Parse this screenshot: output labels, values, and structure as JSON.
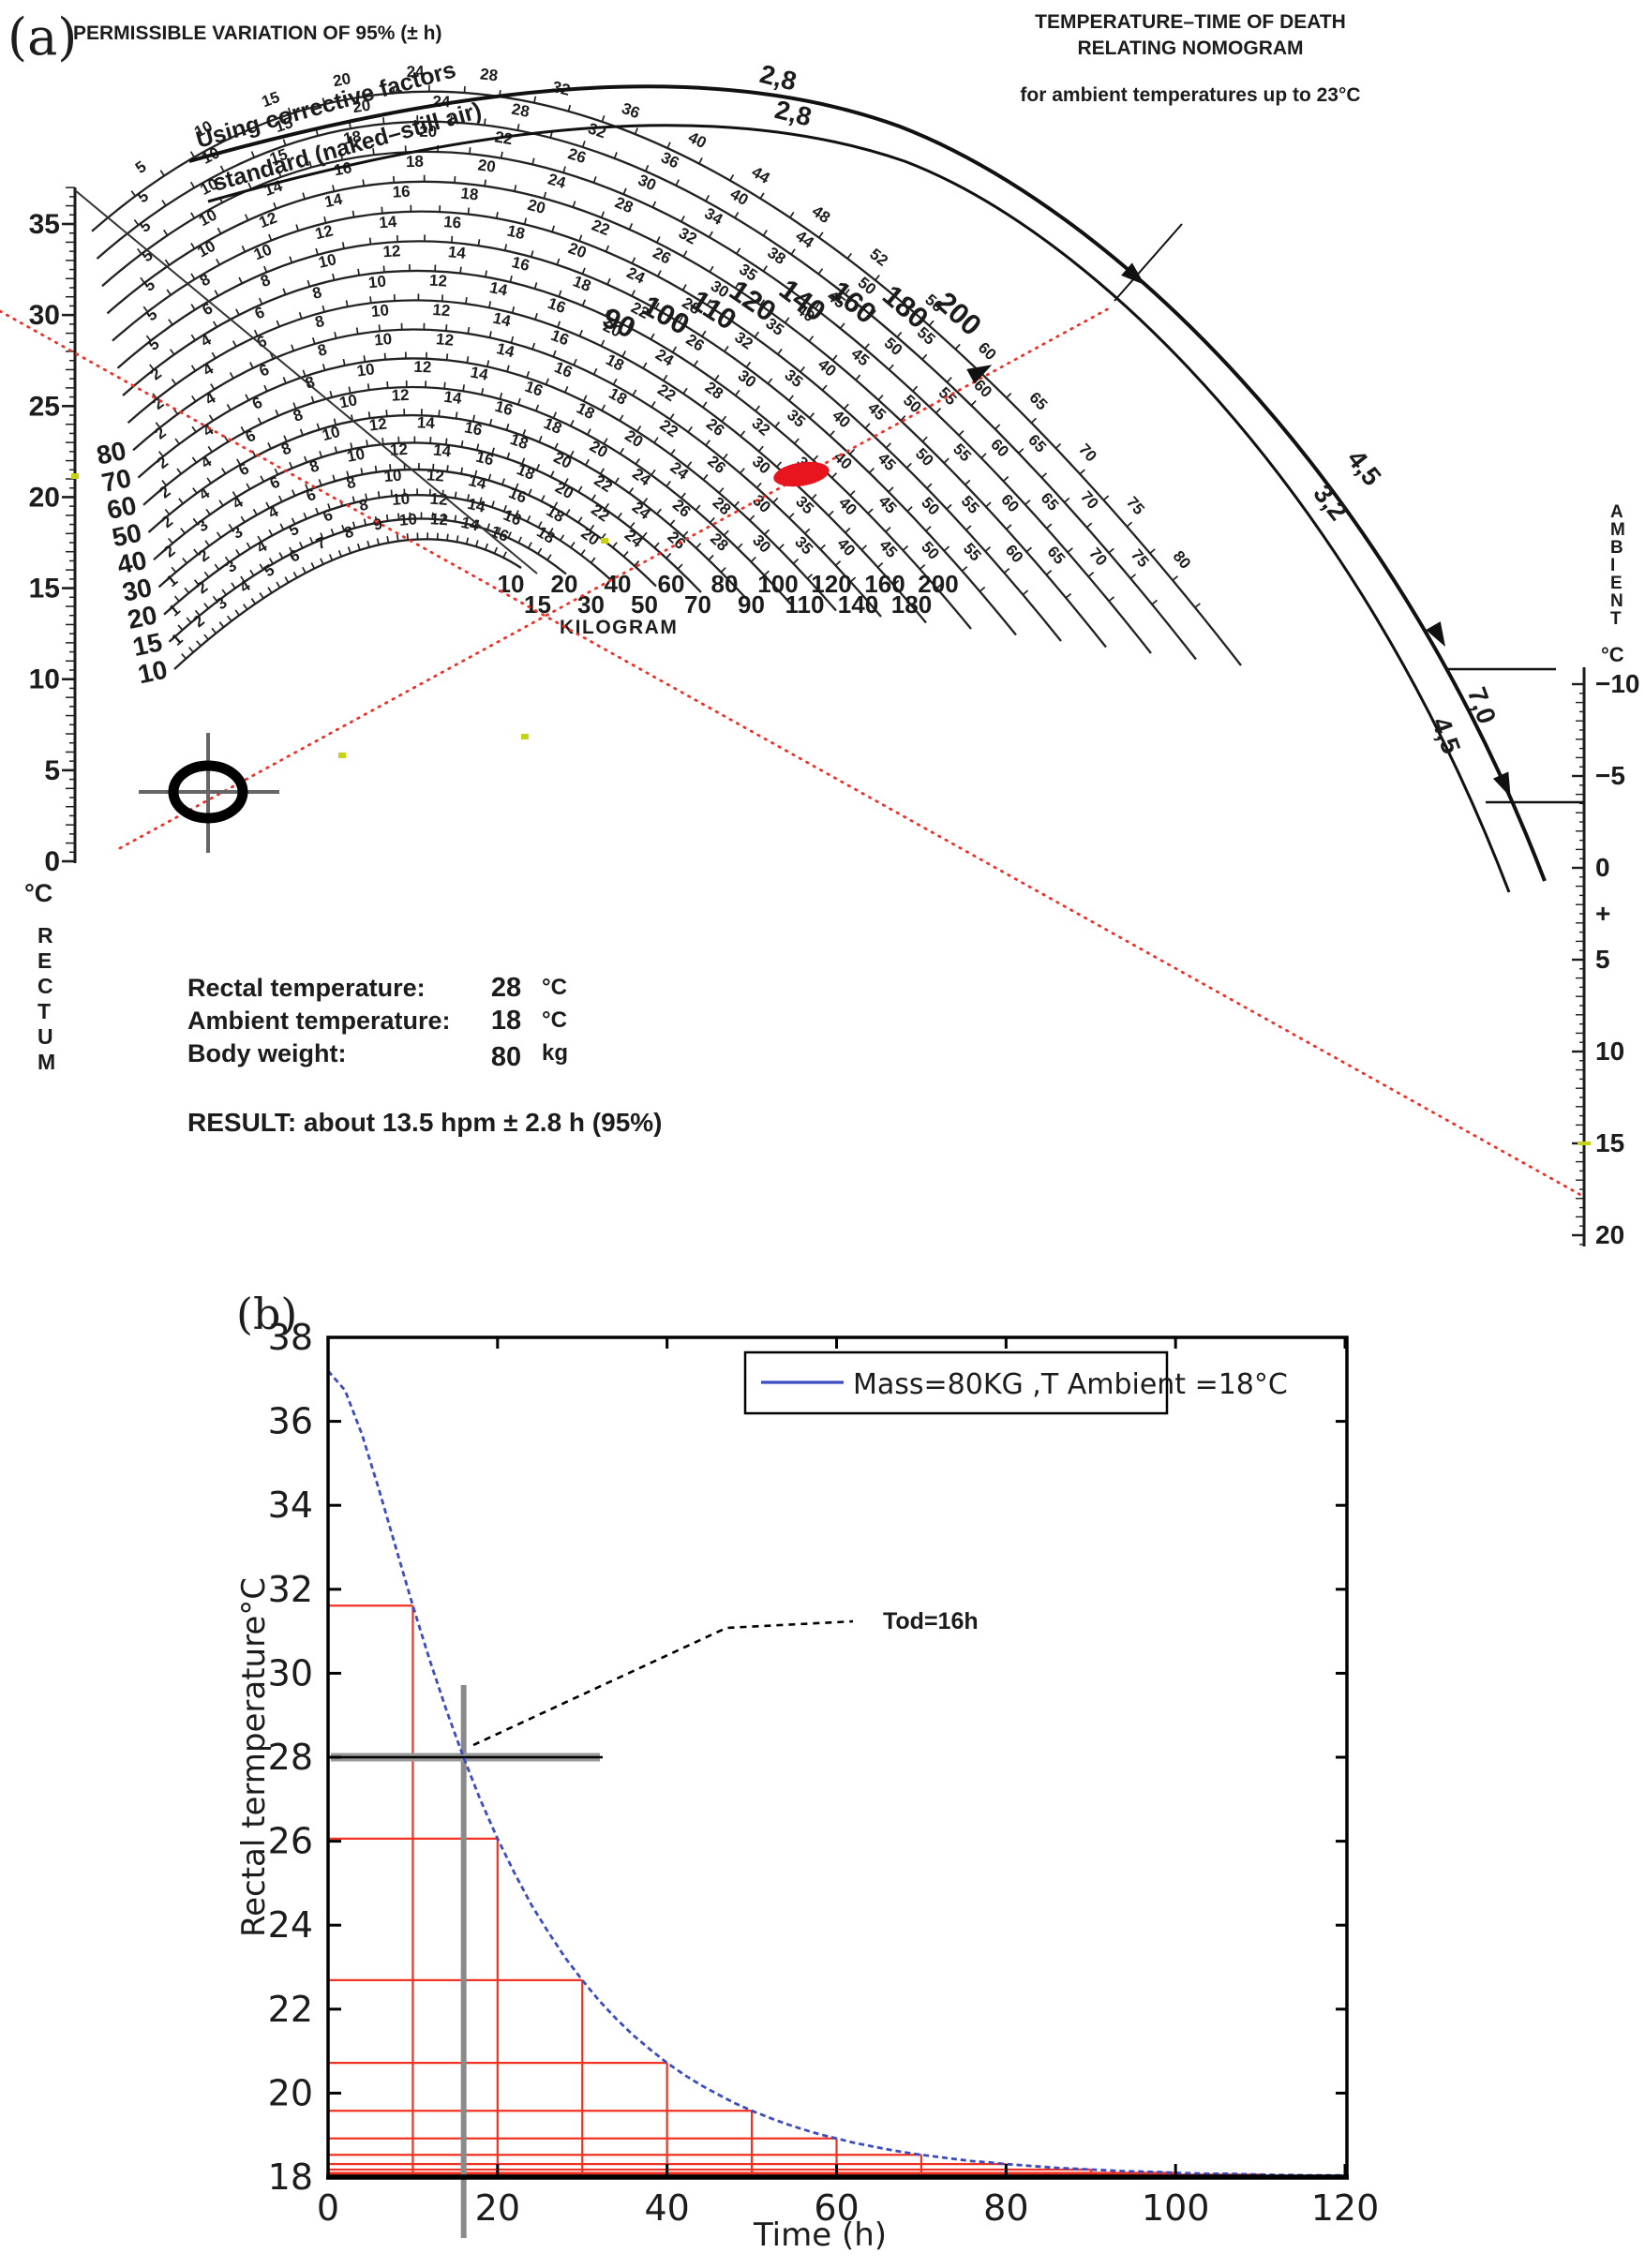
{
  "colors": {
    "red": "#f03026",
    "deep_red": "#e8141e",
    "blue_value": "#2e5bd7",
    "curve_blue": "#3b4cc0",
    "gray": "#8a8a8a",
    "yellow_green": "#c6d313",
    "ink": "#1c1c1c"
  },
  "panel_a": {
    "tag": "(a)",
    "title_left": "PERMISSIBLE VARIATION OF 95% (± h)",
    "title_right_1": "TEMPERATURE–TIME OF DEATH",
    "title_right_2": "RELATING NOMOGRAM",
    "subtitle_right": "for ambient temperatures up to 23°C",
    "corrective_label": "Using corrective factors",
    "standard_label": "standard (naked–still air)",
    "variation_pairs": [
      [
        "2,8",
        "2,8"
      ],
      [
        "4,5",
        "3,2"
      ],
      [
        "7,0",
        "4,5"
      ]
    ],
    "rectum_axis": {
      "ticks": [
        35,
        30,
        25,
        20,
        15,
        10,
        5,
        0
      ],
      "unit": "°C",
      "name": "RECTUM"
    },
    "ambient_axis": {
      "ticks": [
        "−10",
        "−5",
        "0",
        "+",
        "5",
        "10",
        "15",
        "20"
      ],
      "name": "AMBIENT",
      "unit": "°C"
    },
    "kilogram_label": "KILOGRAM",
    "arcs": [
      {
        "w": "10",
        "hours": [
          "1",
          "2",
          "3",
          "4",
          "5",
          "6",
          "7",
          "8",
          "9",
          "10",
          "12",
          "14",
          "16"
        ]
      },
      {
        "w": "15",
        "hours": [
          "1",
          "2",
          "3",
          "4",
          "5",
          "6",
          "8",
          "10",
          "12",
          "14",
          "16",
          "18"
        ]
      },
      {
        "w": "20",
        "hours": [
          "1",
          "2",
          "3",
          "4",
          "6",
          "8",
          "10",
          "12",
          "14",
          "16",
          "18",
          "20"
        ]
      },
      {
        "w": "30",
        "hours": [
          "2",
          "3",
          "4",
          "6",
          "8",
          "10",
          "12",
          "14",
          "16",
          "18",
          "20",
          "22",
          "24"
        ]
      },
      {
        "w": "40",
        "hours": [
          "2",
          "4",
          "6",
          "8",
          "10",
          "12",
          "14",
          "16",
          "18",
          "20",
          "22",
          "24",
          "26"
        ]
      },
      {
        "w": "50",
        "hours": [
          "2",
          "4",
          "6",
          "8",
          "10",
          "12",
          "14",
          "16",
          "18",
          "20",
          "24",
          "26",
          "28"
        ]
      },
      {
        "w": "60",
        "hours": [
          "2",
          "4",
          "6",
          "8",
          "10",
          "12",
          "14",
          "16",
          "18",
          "20",
          "24",
          "28",
          "30"
        ]
      },
      {
        "w": "70",
        "hours": [
          "2",
          "4",
          "6",
          "8",
          "10",
          "12",
          "14",
          "16",
          "18",
          "22",
          "26",
          "30",
          "35"
        ]
      },
      {
        "w": "80",
        "hours": [
          "2",
          "4",
          "6",
          "8",
          "10",
          "12",
          "14",
          "16",
          "18",
          "22",
          "26",
          "30",
          "35",
          "40"
        ]
      },
      {
        "w": "90",
        "hours": [
          "2",
          "4",
          "6",
          "8",
          "10",
          "12",
          "14",
          "16",
          "20",
          "24",
          "28",
          "32",
          "35",
          "40",
          "45"
        ]
      },
      {
        "w": "100",
        "hours": [
          "5",
          "6",
          "8",
          "10",
          "12",
          "14",
          "16",
          "18",
          "22",
          "26",
          "30",
          "35",
          "40",
          "45",
          "50"
        ]
      },
      {
        "w": "110",
        "hours": [
          "5",
          "8",
          "10",
          "12",
          "14",
          "16",
          "18",
          "20",
          "24",
          "28",
          "32",
          "35",
          "40",
          "45",
          "50",
          "55"
        ]
      },
      {
        "w": "120",
        "hours": [
          "5",
          "10",
          "12",
          "14",
          "16",
          "18",
          "20",
          "22",
          "26",
          "30",
          "35",
          "40",
          "45",
          "50",
          "55",
          "60"
        ]
      },
      {
        "w": "140",
        "hours": [
          "5",
          "10",
          "14",
          "16",
          "18",
          "20",
          "24",
          "28",
          "32",
          "35",
          "40",
          "45",
          "50",
          "55",
          "60",
          "65"
        ]
      },
      {
        "w": "160",
        "hours": [
          "5",
          "10",
          "15",
          "18",
          "20",
          "22",
          "26",
          "30",
          "34",
          "38",
          "45",
          "50",
          "55",
          "60",
          "65",
          "70"
        ]
      },
      {
        "w": "180",
        "hours": [
          "5",
          "10",
          "15",
          "20",
          "24",
          "28",
          "32",
          "36",
          "40",
          "44",
          "50",
          "55",
          "60",
          "65",
          "70",
          "75"
        ]
      },
      {
        "w": "200",
        "hours": [
          "5",
          "10",
          "15",
          "20",
          "24",
          "28",
          "32",
          "36",
          "40",
          "44",
          "48",
          "52",
          "56",
          "60",
          "65",
          "70",
          "75",
          "80"
        ]
      }
    ],
    "readout": {
      "rows": [
        {
          "label": "Rectal temperature:",
          "value": "28",
          "unit": "°C"
        },
        {
          "label": "Ambient temperature:",
          "value": "18",
          "unit": "°C"
        },
        {
          "label": "Body weight:",
          "value": "80",
          "unit": "kg"
        }
      ],
      "result": "RESULT: about 13.5 hpm ± 2.8 h (95%)"
    }
  },
  "panel_b": {
    "tag": "(b)"
  },
  "chart_data": {
    "type": "line",
    "title": "",
    "xlabel": "Time (h)",
    "ylabel": "Rectal termperature°C",
    "xlim": [
      0,
      120
    ],
    "ylim": [
      18,
      38
    ],
    "xticks": [
      0,
      20,
      40,
      60,
      80,
      100,
      120
    ],
    "yticks": [
      18,
      20,
      22,
      24,
      26,
      28,
      30,
      32,
      34,
      36,
      38
    ],
    "legend": {
      "position": "top-right",
      "entries": [
        {
          "label": "Mass=80KG  ,T Ambient =18°C",
          "color": "#3b4cc0"
        }
      ]
    },
    "annotation": {
      "text": "Tod=16h",
      "points_at": {
        "x": 16,
        "y": 28
      }
    },
    "grid": false,
    "series": [
      {
        "name": "Mass=80KG  ,T Ambient =18°C",
        "x_step": 2,
        "x_start": 0,
        "values": [
          37.2,
          36.74,
          35.69,
          34.38,
          32.99,
          31.61,
          30.31,
          29.1,
          27.99,
          26.97,
          26.06,
          25.24,
          24.48,
          23.83,
          23.22,
          22.69,
          22.2,
          21.77,
          21.38,
          21.04,
          20.72,
          20.44,
          20.19,
          19.97,
          19.76,
          19.58,
          19.42,
          19.27,
          19.14,
          19.02,
          18.92,
          18.82,
          18.74,
          18.66,
          18.59,
          18.53,
          18.48,
          18.43,
          18.38,
          18.35,
          18.31,
          18.28,
          18.25,
          18.22,
          18.2,
          18.18,
          18.16,
          18.14,
          18.13,
          18.12,
          18.1,
          18.09,
          18.08,
          18.08,
          18.07,
          18.06,
          18.05,
          18.05,
          18.04,
          18.04,
          18.04
        ]
      }
    ],
    "staircase": {
      "times": [
        10,
        20,
        30,
        40,
        50,
        60,
        70,
        80,
        90,
        100,
        110
      ],
      "temps": [
        31.61,
        26.06,
        22.69,
        20.72,
        19.58,
        18.92,
        18.53,
        18.31,
        18.18,
        18.1,
        18.06
      ]
    },
    "crosshair": {
      "x": 16,
      "y": 28
    }
  }
}
